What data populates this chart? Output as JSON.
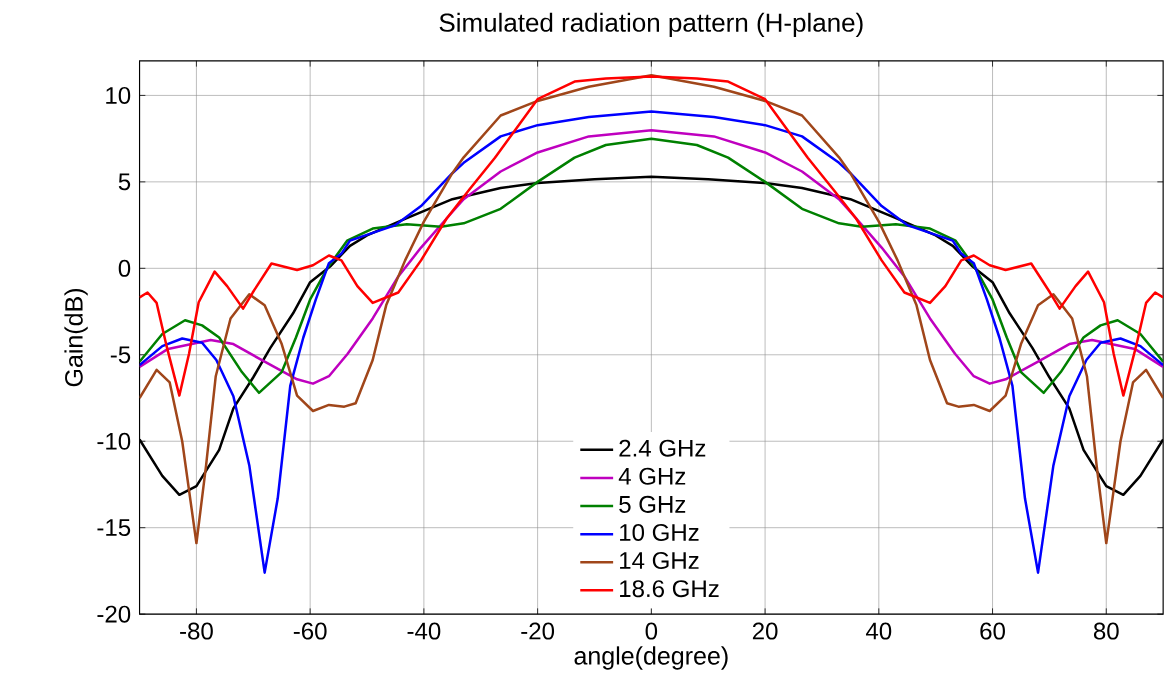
{
  "chart_data": {
    "type": "line",
    "title": "Simulated radiation pattern (H-plane)",
    "xlabel": "angle(degree)",
    "ylabel": "Gain(dB)",
    "xlim": [
      -90,
      90
    ],
    "ylim": [
      -20,
      12
    ],
    "xticks": [
      -80,
      -60,
      -40,
      -20,
      0,
      20,
      40,
      60,
      80
    ],
    "yticks": [
      -20,
      -15,
      -10,
      -5,
      0,
      5,
      10
    ],
    "grid": true,
    "legend": "bottom",
    "marker": "none",
    "line_style": "solid",
    "series": [
      {
        "name": "2.4 GHz",
        "color": "#000000",
        "x": [
          -90,
          -86,
          -83,
          -80,
          -76,
          -73.5,
          -70,
          -67,
          -63,
          -60,
          -56.5,
          -53,
          -50,
          -43,
          -35,
          -26.5,
          -20,
          -10,
          0,
          10,
          20,
          26.5,
          35,
          43,
          50,
          53,
          56.5,
          60,
          63,
          67,
          70,
          73.5,
          76,
          80,
          83,
          86,
          90
        ],
        "values": [
          -9.9,
          -12.0,
          -13.1,
          -12.6,
          -10.5,
          -8.1,
          -6.3,
          -4.6,
          -2.6,
          -0.8,
          0.1,
          1.3,
          1.9,
          2.9,
          4.0,
          4.65,
          4.93,
          5.15,
          5.3,
          5.15,
          4.93,
          4.65,
          4.0,
          2.9,
          1.9,
          1.3,
          0.1,
          -0.8,
          -2.6,
          -4.6,
          -6.3,
          -8.1,
          -10.5,
          -12.6,
          -13.1,
          -12.0,
          -9.9
        ]
      },
      {
        "name": "4 GHz",
        "color": "#bf00bf",
        "x": [
          -90,
          -85,
          -77.5,
          -73.5,
          -68,
          -62.3,
          -59.5,
          -56.7,
          -53.4,
          -49,
          -44.5,
          -40.5,
          -35,
          -33,
          -26.5,
          -20,
          -11,
          0,
          11,
          20,
          26.5,
          33,
          35,
          40.5,
          44.5,
          49,
          53.4,
          56.7,
          59.5,
          62.3,
          68,
          73.5,
          77.5,
          85,
          90
        ],
        "values": [
          -5.7,
          -4.66,
          -4.15,
          -4.38,
          -5.4,
          -6.42,
          -6.67,
          -6.24,
          -4.94,
          -2.9,
          -0.47,
          1.2,
          3.26,
          4.0,
          5.6,
          6.7,
          7.63,
          7.99,
          7.63,
          6.7,
          5.6,
          4.0,
          3.26,
          1.2,
          -0.47,
          -2.9,
          -4.94,
          -6.24,
          -6.67,
          -6.42,
          -5.4,
          -4.38,
          -4.15,
          -4.66,
          -5.7
        ]
      },
      {
        "name": "5 GHz",
        "color": "#008000",
        "x": [
          -90,
          -86,
          -82,
          -79,
          -76,
          -72,
          -69,
          -65,
          -62.5,
          -60,
          -57,
          -53.5,
          -49,
          -43,
          -37,
          -33,
          -26.5,
          -20,
          -13.5,
          -8,
          0,
          8,
          13.5,
          20,
          26.5,
          33,
          37,
          43,
          49,
          53.5,
          57,
          60,
          62.5,
          65,
          69,
          72,
          76,
          79,
          82,
          86,
          90
        ],
        "values": [
          -5.4,
          -3.8,
          -3.0,
          -3.3,
          -4.0,
          -6.0,
          -7.2,
          -6.0,
          -4.0,
          -1.8,
          0.0,
          1.6,
          2.3,
          2.55,
          2.4,
          2.6,
          3.44,
          5.0,
          6.4,
          7.13,
          7.49,
          7.13,
          6.4,
          5.0,
          3.44,
          2.6,
          2.4,
          2.55,
          2.3,
          1.6,
          0.0,
          -1.8,
          -4.0,
          -6.0,
          -7.2,
          -6.0,
          -4.0,
          -3.3,
          -3.0,
          -3.8,
          -5.4
        ]
      },
      {
        "name": "10 GHz",
        "color": "#0000ff",
        "x": [
          -90,
          -86,
          -82.5,
          -79,
          -76.5,
          -73.5,
          -70.7,
          -68,
          -65.7,
          -63.5,
          -61.2,
          -59,
          -56.7,
          -54.5,
          -53,
          -45,
          -40.5,
          -35,
          -33,
          -26.5,
          -20,
          -11,
          0,
          11,
          20,
          26.5,
          33,
          35,
          40.5,
          45,
          53,
          54.5,
          56.7,
          59,
          61.2,
          63.5,
          65.7,
          68,
          70.7,
          73.5,
          76.5,
          79,
          82.5,
          86,
          90
        ],
        "values": [
          -5.6,
          -4.5,
          -4.06,
          -4.3,
          -5.3,
          -7.4,
          -11.4,
          -17.6,
          -13.3,
          -6.8,
          -4.0,
          -1.8,
          0.3,
          0.85,
          1.6,
          2.5,
          3.6,
          5.5,
          6.1,
          7.63,
          8.28,
          8.75,
          9.07,
          8.75,
          8.28,
          7.63,
          6.1,
          5.5,
          3.6,
          2.5,
          1.6,
          0.85,
          0.3,
          -1.8,
          -4.0,
          -6.8,
          -13.3,
          -17.6,
          -11.4,
          -7.4,
          -5.3,
          -4.3,
          -4.06,
          -4.5,
          -5.6
        ]
      },
      {
        "name": "14 GHz",
        "color": "#a0461a",
        "x": [
          -90,
          -87,
          -84.7,
          -82.5,
          -80,
          -78.3,
          -76.6,
          -74,
          -70.7,
          -68,
          -65,
          -62.3,
          -59.5,
          -56.7,
          -54,
          -52,
          -49,
          -46.6,
          -43.3,
          -40,
          -35,
          -33,
          -26.5,
          -20,
          -11,
          0,
          11,
          20,
          26.5,
          33,
          35,
          40,
          43.3,
          46.6,
          49,
          52,
          54,
          56.7,
          59.5,
          62.3,
          65,
          68,
          70.7,
          74,
          76.6,
          78.3,
          80,
          82.5,
          84.7,
          87,
          90
        ],
        "values": [
          -7.5,
          -5.87,
          -6.6,
          -10.0,
          -15.9,
          -11.4,
          -6.24,
          -2.9,
          -1.5,
          -2.14,
          -4.38,
          -7.36,
          -8.25,
          -7.9,
          -8.0,
          -7.8,
          -5.3,
          -2.1,
          0.46,
          2.7,
          5.5,
          6.42,
          8.84,
          9.68,
          10.5,
          11.17,
          10.5,
          9.68,
          8.84,
          6.42,
          5.5,
          2.7,
          0.46,
          -2.1,
          -5.3,
          -7.8,
          -8.0,
          -7.9,
          -8.25,
          -7.36,
          -4.38,
          -2.14,
          -1.5,
          -2.9,
          -6.24,
          -11.4,
          -15.9,
          -10.0,
          -6.6,
          -5.87,
          -7.5
        ]
      },
      {
        "name": "18.6 GHz",
        "color": "#ff0000",
        "x": [
          -90,
          -88.6,
          -87,
          -85.2,
          -83,
          -81.3,
          -79.6,
          -76.8,
          -74.6,
          -71.8,
          -70.1,
          -66.8,
          -62.3,
          -59.5,
          -56.7,
          -54.5,
          -51.7,
          -49,
          -44.5,
          -40.5,
          -36,
          -32,
          -27.5,
          -20,
          -13.5,
          -8,
          0,
          8,
          13.5,
          20,
          27.5,
          32,
          36,
          40.5,
          44.5,
          49,
          51.7,
          54.5,
          56.7,
          59.5,
          62.3,
          66.8,
          70.1,
          71.8,
          74.6,
          76.8,
          79.6,
          81.3,
          83,
          85.2,
          87,
          88.6,
          90
        ],
        "values": [
          -1.68,
          -1.4,
          -2.0,
          -4.56,
          -7.36,
          -4.94,
          -1.96,
          -0.19,
          -1.03,
          -2.33,
          -1.4,
          0.28,
          -0.1,
          0.18,
          0.74,
          0.46,
          -1.03,
          -2.0,
          -1.4,
          0.46,
          2.88,
          4.56,
          6.4,
          9.78,
          10.8,
          10.98,
          11.1,
          10.98,
          10.8,
          9.78,
          6.4,
          4.56,
          2.88,
          0.46,
          -1.4,
          -2.0,
          -1.03,
          0.46,
          0.74,
          0.18,
          -0.1,
          0.28,
          -1.4,
          -2.33,
          -1.03,
          -0.19,
          -1.96,
          -4.94,
          -7.36,
          -4.56,
          -2.0,
          -1.4,
          -1.68
        ]
      }
    ]
  }
}
